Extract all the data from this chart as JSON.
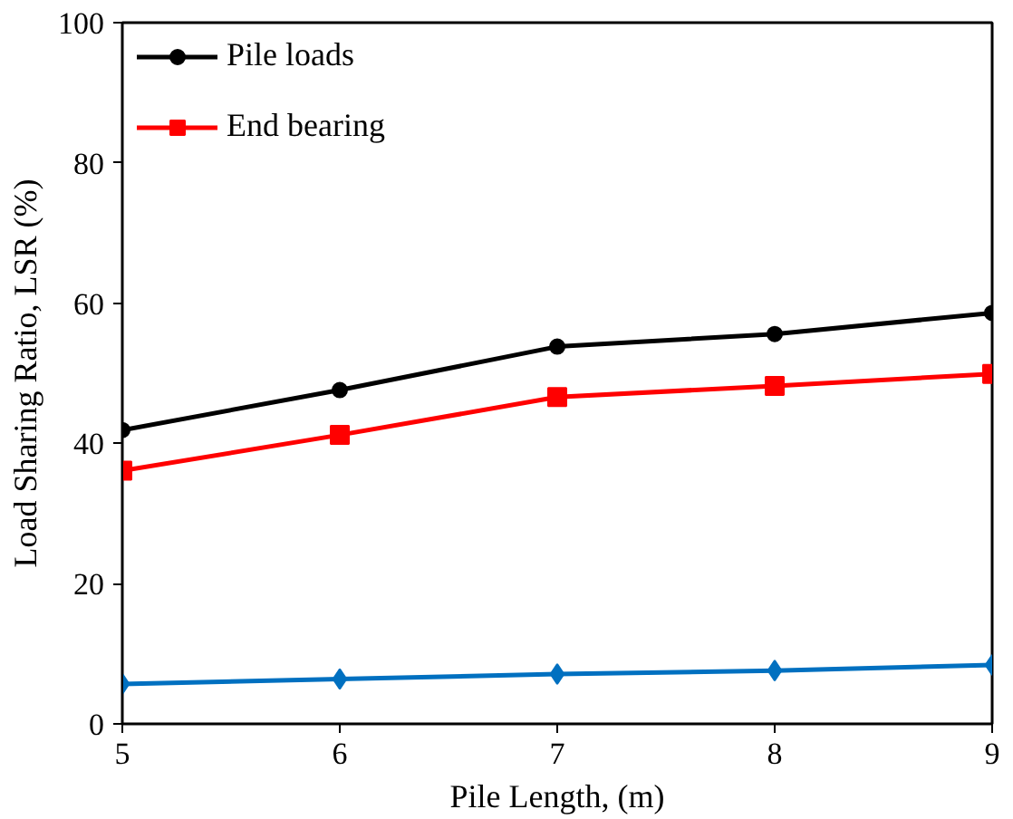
{
  "chart_data": {
    "type": "line",
    "xlabel": "Pile Length, (m)",
    "ylabel": "Load Sharing Ratio, LSR (%)",
    "x": [
      5,
      6,
      7,
      8,
      9
    ],
    "series": [
      {
        "name": "Pile loads",
        "color": "#000000",
        "marker": "circle",
        "values": [
          41.9,
          47.6,
          53.8,
          55.6,
          58.6
        ]
      },
      {
        "name": "End bearing",
        "color": "#ff0000",
        "marker": "square",
        "values": [
          36.1,
          41.2,
          46.6,
          48.2,
          49.9
        ]
      },
      {
        "color": "#0070c0",
        "marker": "diamond",
        "values": [
          5.7,
          6.4,
          7.1,
          7.6,
          8.4
        ]
      }
    ],
    "xlim": [
      5,
      9
    ],
    "xticks": [
      5,
      6,
      7,
      8,
      9
    ],
    "ylim": [
      0,
      100
    ],
    "yticks": [
      0,
      20,
      40,
      60,
      80,
      100
    ],
    "grid": false,
    "legend": "top left",
    "line_style": "solid"
  }
}
